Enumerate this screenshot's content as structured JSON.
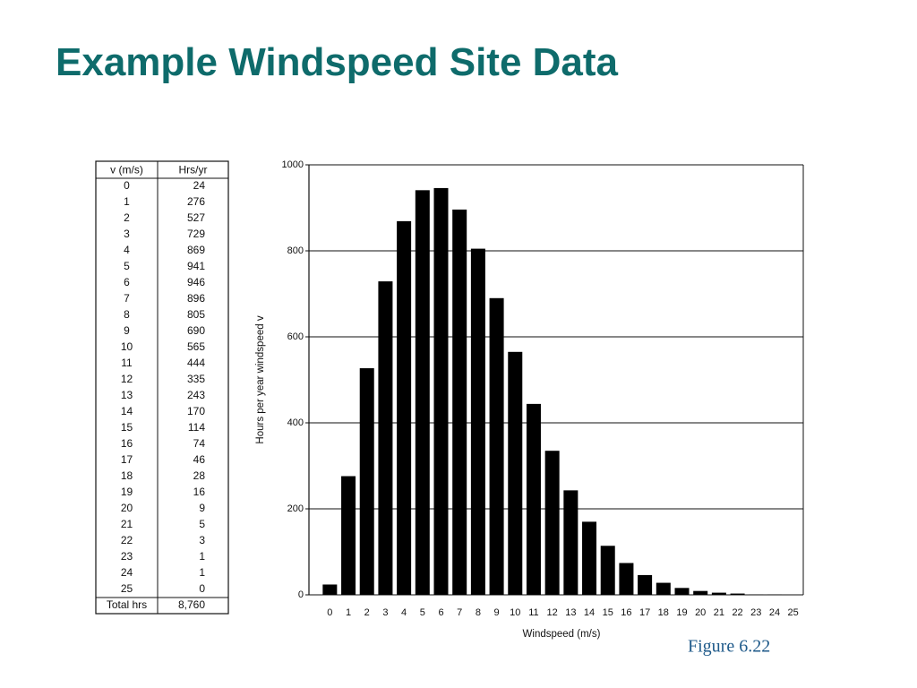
{
  "header": {
    "title": "Example Windspeed Site Data"
  },
  "table": {
    "header": [
      "v (m/s)",
      "Hrs/yr"
    ],
    "rows": [
      [
        "0",
        "24"
      ],
      [
        "1",
        "276"
      ],
      [
        "2",
        "527"
      ],
      [
        "3",
        "729"
      ],
      [
        "4",
        "869"
      ],
      [
        "5",
        "941"
      ],
      [
        "6",
        "946"
      ],
      [
        "7",
        "896"
      ],
      [
        "8",
        "805"
      ],
      [
        "9",
        "690"
      ],
      [
        "10",
        "565"
      ],
      [
        "11",
        "444"
      ],
      [
        "12",
        "335"
      ],
      [
        "13",
        "243"
      ],
      [
        "14",
        "170"
      ],
      [
        "15",
        "114"
      ],
      [
        "16",
        "74"
      ],
      [
        "17",
        "46"
      ],
      [
        "18",
        "28"
      ],
      [
        "19",
        "16"
      ],
      [
        "20",
        "9"
      ],
      [
        "21",
        "5"
      ],
      [
        "22",
        "3"
      ],
      [
        "23",
        "1"
      ],
      [
        "24",
        "1"
      ],
      [
        "25",
        "0"
      ],
      [
        "Total hrs",
        "8,760"
      ]
    ]
  },
  "chart_data": {
    "type": "bar",
    "categories": [
      "0",
      "1",
      "2",
      "3",
      "4",
      "5",
      "6",
      "7",
      "8",
      "9",
      "10",
      "11",
      "12",
      "13",
      "14",
      "15",
      "16",
      "17",
      "18",
      "19",
      "20",
      "21",
      "22",
      "23",
      "24",
      "25"
    ],
    "values": [
      24,
      276,
      527,
      729,
      869,
      941,
      946,
      896,
      805,
      690,
      565,
      444,
      335,
      243,
      170,
      114,
      74,
      46,
      28,
      16,
      9,
      5,
      3,
      1,
      1,
      0
    ],
    "color": "#000000",
    "xlabel": "Windspeed (m/s)",
    "ylabel": "Hours per year windspeed v",
    "ylim": [
      0,
      1000
    ],
    "yticks": [
      0,
      200,
      400,
      600,
      800,
      1000
    ],
    "grid": true
  },
  "caption": "Figure 6.22"
}
